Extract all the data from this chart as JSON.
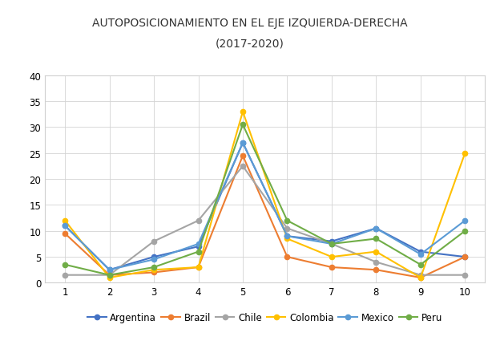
{
  "title_line1": "AUTOPOSICIONAMIENTO EN EL EJE IZQUIERDA-DERECHA",
  "title_line2": "(2017-2020)",
  "x": [
    1,
    2,
    3,
    4,
    5,
    6,
    7,
    8,
    9,
    10
  ],
  "series": {
    "Argentina": [
      11,
      2.5,
      5,
      7,
      27,
      9,
      8,
      10.5,
      6,
      5
    ],
    "Brazil": [
      9.5,
      1.5,
      2,
      3,
      24.5,
      5,
      3,
      2.5,
      1,
      5
    ],
    "Chile": [
      1.5,
      1.5,
      8,
      12,
      22.5,
      10.5,
      7.5,
      4,
      1.5,
      1.5
    ],
    "Colombia": [
      12,
      1,
      2.5,
      3,
      33,
      8.5,
      5,
      6,
      1,
      25
    ],
    "Mexico": [
      11,
      2.5,
      4.5,
      7.5,
      27,
      9,
      7.5,
      10.5,
      5.5,
      12
    ],
    "Peru": [
      3.5,
      1.5,
      3,
      6,
      30.5,
      12,
      7.5,
      8.5,
      3.5,
      10
    ]
  },
  "colors": {
    "Argentina": "#4472C4",
    "Brazil": "#ED7D31",
    "Chile": "#A5A5A5",
    "Colombia": "#FFC000",
    "Mexico": "#5B9BD5",
    "Peru": "#70AD47"
  },
  "ylim": [
    0,
    40
  ],
  "yticks": [
    0,
    5,
    10,
    15,
    20,
    25,
    30,
    35,
    40
  ],
  "xticks": [
    1,
    2,
    3,
    4,
    5,
    6,
    7,
    8,
    9,
    10
  ],
  "background_color": "#FFFFFF",
  "grid_color": "#D3D3D3",
  "border_color": "#D0D0D0"
}
